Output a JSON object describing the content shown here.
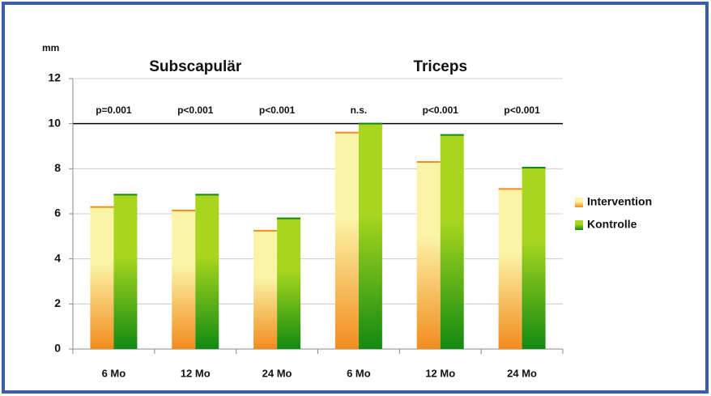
{
  "chart_data": {
    "type": "bar",
    "y_label": "mm",
    "group_labels": [
      "Subscapulär",
      "Triceps"
    ],
    "categories": [
      "6 Mo",
      "12 Mo",
      "24 Mo",
      "6 Mo",
      "12 Mo",
      "24 Mo"
    ],
    "annotations": [
      "p=0.001",
      "p<0.001",
      "p<0.001",
      "n.s.",
      "p<0.001",
      "p<0.001"
    ],
    "series": [
      {
        "name": "Intervention",
        "color": "#f28c1e",
        "highlight": "#fbf3a6",
        "values": [
          6.3,
          6.15,
          5.25,
          9.6,
          8.3,
          7.1
        ]
      },
      {
        "name": "Kontrolle",
        "color": "#128a12",
        "highlight": "#a8d61e",
        "values": [
          6.85,
          6.85,
          5.8,
          10.0,
          9.5,
          8.05
        ]
      }
    ],
    "reference_line": 10,
    "ylim": [
      0,
      12
    ],
    "yticks": [
      0,
      2,
      4,
      6,
      8,
      10,
      12
    ],
    "grid": true,
    "legend": "right"
  }
}
